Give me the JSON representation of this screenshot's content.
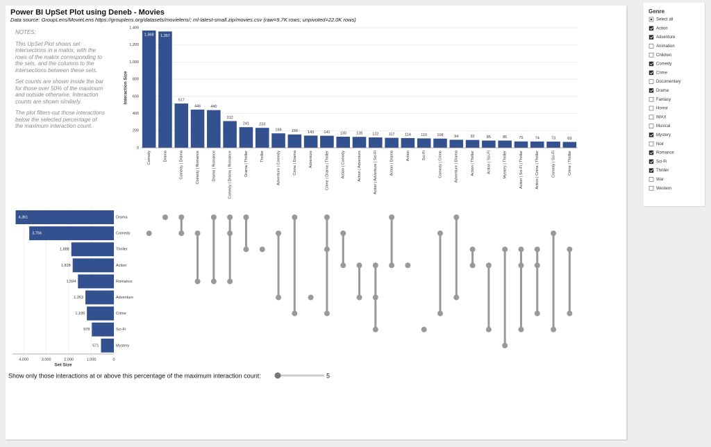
{
  "header": {
    "title": "Power BI UpSet Plot using Deneb - Movies",
    "subtitle": "Data source: GroupLens/MovieLens https://grouplens.org/datasets/movielens/; ml-latest-small.zip/movies.csv (raw=9.7K rows; unpivoted=22.0K rows)"
  },
  "notes": {
    "title": "NOTES:",
    "paragraphs": [
      "This UpSet Plot shows set intersections in a matrix, with the rows of the matrix corresponding to the sets, and the columns to the intersections between these sets.",
      "Set counts are shown inside the bar for those over 50% of the maximum and outside otherwise. Interaction counts are shown similarly.",
      "The plot filters-out those interactions below the selected percentage of the maximum interaction count."
    ]
  },
  "chart_data": [
    {
      "type": "bar",
      "y_label": "Interaction Size",
      "categories": [
        "Comedy",
        "Drama",
        "Comedy | Drama",
        "Comedy | Romance",
        "Drama | Romance",
        "Comedy | Drama | Romance",
        "Drama | Thriller",
        "Thriller",
        "Adventure | Comedy",
        "Crime | Drama",
        "Adventure",
        "Crime | Drama | Thriller",
        "Action | Comedy",
        "Action | Adventure",
        "Action | Adventure | Sci-Fi",
        "Action | Drama",
        "Action",
        "Sci-Fi",
        "Comedy | Crime",
        "Adventure | Drama",
        "Action | Thriller",
        "Action | Sci-Fi",
        "Mystery | Thriller",
        "Action | Sci-Fi | Thriller",
        "Action | Crime | Thriller",
        "Comedy | Sci-Fi",
        "Crime | Thriller"
      ],
      "values": [
        1368,
        1357,
        517,
        446,
        440,
        312,
        241,
        233,
        169,
        156,
        143,
        141,
        130,
        128,
        122,
        117,
        114,
        110,
        108,
        94,
        92,
        85,
        85,
        75,
        74,
        73,
        69
      ],
      "value_labels": [
        "1,368",
        "1,357",
        "517",
        "446",
        "440",
        "312",
        "241",
        "233",
        "169",
        "156",
        "143",
        "141",
        "130",
        "128",
        "122",
        "117",
        "114",
        "110",
        "108",
        "94",
        "92",
        "85",
        "85",
        "75",
        "74",
        "73",
        "69"
      ],
      "color": "#34518f",
      "ylim": [
        0,
        1400
      ],
      "yticks": [
        0,
        200,
        400,
        600,
        800,
        {
          "value": 1000,
          "label": "1,000"
        },
        {
          "value": 1200,
          "label": "1,200"
        },
        {
          "value": 1400,
          "label": "1,400"
        }
      ],
      "grid": true
    },
    {
      "type": "hbar",
      "x_label": "Set Size",
      "categories": [
        "Drama",
        "Comedy",
        "Thriller",
        "Action",
        "Romance",
        "Adventure",
        "Crime",
        "Sci-Fi",
        "Mystery"
      ],
      "values": [
        4361,
        3756,
        1888,
        1828,
        1594,
        1263,
        1199,
        978,
        571
      ],
      "value_labels": [
        "4,361",
        "3,756",
        "1,888",
        "1,828",
        "1,594",
        "1,263",
        "1,199",
        "978",
        "571"
      ],
      "color": "#34518f",
      "xlim": [
        4500,
        0
      ],
      "xticks": [
        {
          "value": 4000,
          "label": "4,000"
        },
        {
          "value": 3000,
          "label": "3,000"
        },
        {
          "value": 2000,
          "label": "2,000"
        },
        {
          "value": 1000,
          "label": "1,000"
        },
        0
      ],
      "grid": true
    }
  ],
  "slider": {
    "label": "Show only those interactions at or above this percentage of the maximum interaction count:",
    "value": 5
  },
  "slicer": {
    "title": "Genre",
    "items": [
      {
        "label": "Select all",
        "state": "mixed"
      },
      {
        "label": "Action",
        "state": "checked"
      },
      {
        "label": "Adventure",
        "state": "checked"
      },
      {
        "label": "Animation",
        "state": "unchecked"
      },
      {
        "label": "Children",
        "state": "unchecked"
      },
      {
        "label": "Comedy",
        "state": "checked"
      },
      {
        "label": "Crime",
        "state": "checked"
      },
      {
        "label": "Documentary",
        "state": "unchecked"
      },
      {
        "label": "Drama",
        "state": "checked"
      },
      {
        "label": "Fantasy",
        "state": "unchecked"
      },
      {
        "label": "Horror",
        "state": "unchecked"
      },
      {
        "label": "IMAX",
        "state": "unchecked"
      },
      {
        "label": "Musical",
        "state": "unchecked"
      },
      {
        "label": "Mystery",
        "state": "checked"
      },
      {
        "label": "Noir",
        "state": "unchecked"
      },
      {
        "label": "Romance",
        "state": "checked"
      },
      {
        "label": "Sci-Fi",
        "state": "checked"
      },
      {
        "label": "Thriller",
        "state": "checked"
      },
      {
        "label": "War",
        "state": "unchecked"
      },
      {
        "label": "Western",
        "state": "unchecked"
      }
    ]
  }
}
